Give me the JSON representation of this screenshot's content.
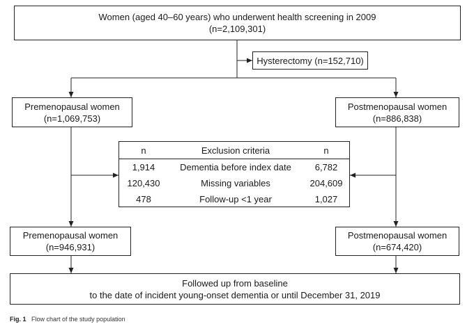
{
  "top_box": {
    "line1": "Women (aged 40–60 years) who underwent health screening in 2009",
    "line2": "(n=2,109,301)"
  },
  "hysterectomy_box": {
    "label": "Hysterectomy (n=152,710)"
  },
  "pre_box": {
    "line1": "Premenopausal women",
    "line2": "(n=1,069,753)"
  },
  "post_box": {
    "line1": "Postmenopausal women",
    "line2": "(n=886,838)"
  },
  "exclusion_table": {
    "headers": [
      "n",
      "Exclusion criteria",
      "n"
    ],
    "rows": [
      [
        "1,914",
        "Dementia before index date",
        "6,782"
      ],
      [
        "120,430",
        "Missing variables",
        "204,609"
      ],
      [
        "478",
        "Follow-up <1 year",
        "1,027"
      ]
    ]
  },
  "pre_final_box": {
    "line1": "Premenopausal women",
    "line2": "(n=946,931)"
  },
  "post_final_box": {
    "line1": "Postmenopausal women",
    "line2": "(n=674,420)"
  },
  "followup_box": {
    "line1": "Followed up from baseline",
    "line2": "to the date of incident young-onset dementia or until December 31, 2019"
  },
  "caption": {
    "label": "Fig. 1",
    "text": "Flow chart of the study population"
  }
}
